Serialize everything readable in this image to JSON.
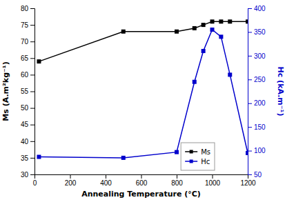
{
  "chart_data": {
    "type": "line",
    "xlabel": "Annealing Temperature (°C)",
    "ylabel": "Ms (A.m²kg⁻¹)",
    "y2label": "Hc (kA.m⁻¹)",
    "x": [
      25,
      500,
      800,
      900,
      950,
      1000,
      1050,
      1100,
      1200
    ],
    "series": [
      {
        "name": "Ms",
        "color": "#000000",
        "marker": "square",
        "values": [
          64.0,
          73.0,
          73.0,
          74.0,
          75.0,
          76.0,
          76.0,
          76.0,
          76.0
        ]
      },
      {
        "name": "Hc",
        "color": "#0000cc",
        "marker": "square",
        "axis": "y2",
        "values": [
          87,
          85,
          97,
          245,
          310,
          355,
          340,
          260,
          95
        ]
      }
    ],
    "xlim": [
      0,
      1200
    ],
    "xticks": [
      0,
      200,
      400,
      600,
      800,
      1000,
      1200
    ],
    "ylim": [
      30,
      80
    ],
    "yticks": [
      30,
      35,
      40,
      45,
      50,
      55,
      60,
      65,
      70,
      75,
      80
    ],
    "y2lim": [
      50,
      400
    ],
    "y2ticks": [
      50,
      100,
      150,
      200,
      250,
      300,
      350,
      400
    ],
    "legend": "lower right"
  }
}
